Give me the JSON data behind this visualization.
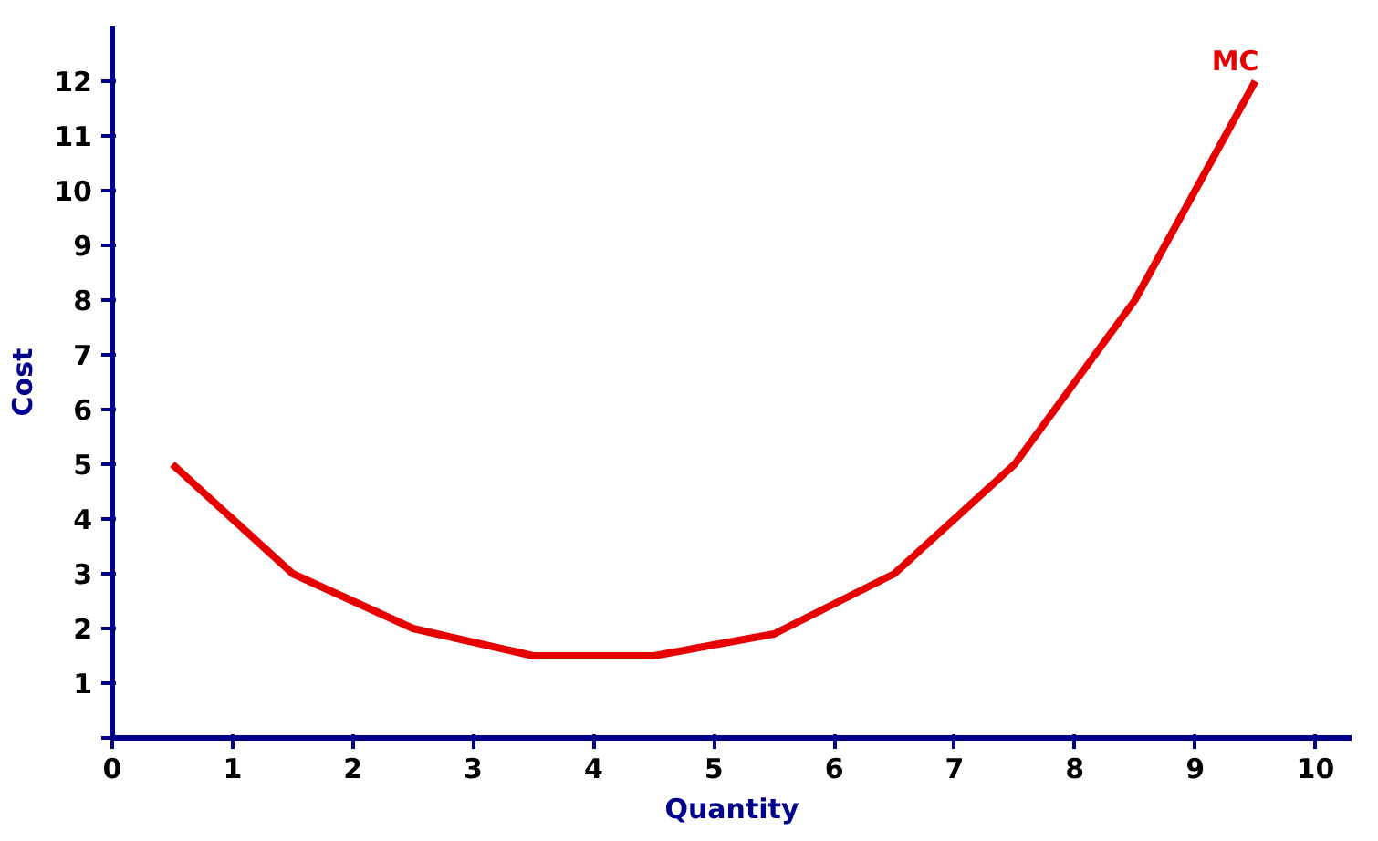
{
  "chart_data": {
    "type": "line",
    "xlabel": "Quantity",
    "ylabel": "Cost",
    "x": [
      0.5,
      1.5,
      2.5,
      3.5,
      4.5,
      5.5,
      6.5,
      7.5,
      8.5,
      9.5
    ],
    "series": [
      {
        "name": "MC",
        "color": "#e60000",
        "values": [
          5,
          3,
          2,
          1.5,
          1.5,
          1.9,
          3,
          5,
          8,
          12
        ]
      }
    ],
    "xlim": [
      0,
      10.3
    ],
    "xticks": [
      0,
      1,
      2,
      3,
      4,
      5,
      6,
      7,
      8,
      9,
      10
    ],
    "ylim": [
      0,
      13
    ],
    "yticks": [
      {
        "value": 0,
        "label": null
      },
      1,
      2,
      3,
      4,
      5,
      6,
      7,
      8,
      9,
      10,
      11,
      12
    ],
    "grid": false,
    "marker": "none",
    "line_style": "solid"
  }
}
